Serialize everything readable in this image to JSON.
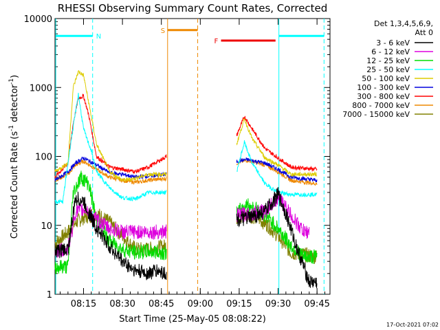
{
  "chart_data": {
    "type": "line",
    "title": "RHESSI Observing Summary Count Rates, Corrected",
    "xlabel": "Start Time (25-May-05 08:08:22)",
    "ylabel_main": "Corrected Count Rate (s",
    "ylabel_sup1": "-1",
    "ylabel_mid": " detector",
    "ylabel_sup2": "-1",
    "ylabel_end": ")",
    "yscale": "log",
    "ylim": [
      1,
      10000
    ],
    "xlim_minutes": [
      484,
      590
    ],
    "x_ticks": [
      {
        "m": 495,
        "label": "08:15"
      },
      {
        "m": 510,
        "label": "08:30"
      },
      {
        "m": 525,
        "label": "08:45"
      },
      {
        "m": 540,
        "label": "09:00"
      },
      {
        "m": 555,
        "label": "09:15"
      },
      {
        "m": 570,
        "label": "09:30"
      },
      {
        "m": 585,
        "label": "09:45"
      }
    ],
    "y_ticks": [
      {
        "v": 1,
        "label": "1"
      },
      {
        "v": 10,
        "label": "10"
      },
      {
        "v": 100,
        "label": "100"
      },
      {
        "v": 1000,
        "label": "1000"
      },
      {
        "v": 10000,
        "label": "10000"
      }
    ],
    "legend_title": [
      "Det 1,3,4,5,6,9,",
      "Att 0"
    ],
    "legend_position": "right",
    "footer_date": "17-Oct-2021 07:02",
    "series": [
      {
        "name": "3 - 6 keV",
        "color": "#000000",
        "gap1": [
          [
            484,
            4.2
          ],
          [
            489,
            4.5
          ],
          [
            492,
            25
          ],
          [
            495,
            22
          ],
          [
            500,
            9
          ],
          [
            505,
            5
          ],
          [
            510,
            3
          ],
          [
            515,
            2.2
          ],
          [
            520,
            2
          ],
          [
            523,
            2.2
          ],
          [
            527,
            2
          ]
        ],
        "gap2": [
          [
            554,
            12
          ],
          [
            560,
            13
          ],
          [
            565,
            16
          ],
          [
            570,
            28
          ],
          [
            573,
            15
          ],
          [
            577,
            5
          ],
          [
            582,
            1.5
          ],
          [
            585,
            1.5
          ]
        ]
      },
      {
        "name": "6 - 12 keV",
        "color": "#dd00dd",
        "gap1": [
          [
            484,
            4.2
          ],
          [
            489,
            4.5
          ],
          [
            492,
            16
          ],
          [
            496,
            17
          ],
          [
            500,
            12
          ],
          [
            505,
            9
          ],
          [
            510,
            8
          ],
          [
            515,
            8
          ],
          [
            520,
            8
          ],
          [
            527,
            8
          ]
        ],
        "gap2": [
          [
            554,
            14
          ],
          [
            560,
            15
          ],
          [
            565,
            16
          ],
          [
            570,
            26
          ],
          [
            573,
            18
          ],
          [
            577,
            11
          ],
          [
            580,
            8
          ],
          [
            582,
            8
          ]
        ]
      },
      {
        "name": "12 - 25 keV",
        "color": "#00dd00",
        "gap1": [
          [
            484,
            2.5
          ],
          [
            489,
            2.5
          ],
          [
            491,
            30
          ],
          [
            494,
            50
          ],
          [
            497,
            40
          ],
          [
            500,
            12
          ],
          [
            505,
            6
          ],
          [
            510,
            4.5
          ],
          [
            515,
            4
          ],
          [
            520,
            4.2
          ],
          [
            527,
            4
          ]
        ],
        "gap2": [
          [
            554,
            15
          ],
          [
            558,
            20
          ],
          [
            562,
            17
          ],
          [
            566,
            13
          ],
          [
            570,
            9
          ],
          [
            575,
            5
          ],
          [
            580,
            3.5
          ],
          [
            585,
            3.5
          ]
        ]
      },
      {
        "name": "25 - 50 keV",
        "color": "#00ffff",
        "gap1": [
          [
            484,
            22
          ],
          [
            487,
            22
          ],
          [
            490,
            150
          ],
          [
            493,
            800
          ],
          [
            495,
            250
          ],
          [
            498,
            120
          ],
          [
            500,
            60
          ],
          [
            505,
            35
          ],
          [
            510,
            25
          ],
          [
            515,
            24
          ],
          [
            520,
            30
          ],
          [
            527,
            30
          ]
        ],
        "gap2": [
          [
            554,
            60
          ],
          [
            557,
            160
          ],
          [
            560,
            80
          ],
          [
            565,
            40
          ],
          [
            570,
            30
          ],
          [
            575,
            28
          ],
          [
            585,
            28
          ]
        ]
      },
      {
        "name": "50 - 100 keV",
        "color": "#ddcc00",
        "gap1": [
          [
            484,
            60
          ],
          [
            489,
            80
          ],
          [
            491,
            1000
          ],
          [
            493,
            1700
          ],
          [
            495,
            1500
          ],
          [
            497,
            600
          ],
          [
            500,
            150
          ],
          [
            505,
            60
          ],
          [
            510,
            45
          ],
          [
            515,
            48
          ],
          [
            520,
            55
          ],
          [
            527,
            55
          ]
        ],
        "gap2": [
          [
            554,
            150
          ],
          [
            557,
            350
          ],
          [
            560,
            180
          ],
          [
            565,
            95
          ],
          [
            570,
            75
          ],
          [
            575,
            55
          ],
          [
            585,
            55
          ]
        ]
      },
      {
        "name": "100 - 300 keV",
        "color": "#0000dd",
        "gap1": [
          [
            484,
            45
          ],
          [
            489,
            60
          ],
          [
            492,
            80
          ],
          [
            495,
            95
          ],
          [
            500,
            75
          ],
          [
            505,
            58
          ],
          [
            510,
            55
          ],
          [
            515,
            50
          ],
          [
            520,
            52
          ],
          [
            527,
            55
          ]
        ],
        "gap2": [
          [
            554,
            85
          ],
          [
            558,
            90
          ],
          [
            565,
            80
          ],
          [
            570,
            65
          ],
          [
            575,
            50
          ],
          [
            585,
            45
          ]
        ]
      },
      {
        "name": "300 - 800 keV",
        "color": "#ff0000",
        "gap1": [
          [
            484,
            50
          ],
          [
            489,
            80
          ],
          [
            491,
            300
          ],
          [
            493,
            700
          ],
          [
            495,
            750
          ],
          [
            497,
            400
          ],
          [
            500,
            100
          ],
          [
            505,
            70
          ],
          [
            510,
            65
          ],
          [
            515,
            60
          ],
          [
            520,
            70
          ],
          [
            527,
            100
          ]
        ],
        "gap2": [
          [
            554,
            200
          ],
          [
            557,
            380
          ],
          [
            560,
            250
          ],
          [
            565,
            130
          ],
          [
            570,
            95
          ],
          [
            575,
            70
          ],
          [
            585,
            65
          ]
        ]
      },
      {
        "name": "800 - 7000 keV",
        "color": "#ee8800",
        "gap1": [
          [
            484,
            45
          ],
          [
            489,
            55
          ],
          [
            492,
            75
          ],
          [
            495,
            85
          ],
          [
            500,
            65
          ],
          [
            505,
            50
          ],
          [
            510,
            45
          ],
          [
            515,
            42
          ],
          [
            520,
            45
          ],
          [
            527,
            48
          ]
        ],
        "gap2": [
          [
            554,
            80
          ],
          [
            558,
            88
          ],
          [
            565,
            75
          ],
          [
            570,
            60
          ],
          [
            575,
            45
          ],
          [
            585,
            40
          ]
        ]
      },
      {
        "name": "7000 - 15000 keV",
        "color": "#808000",
        "gap1": [
          [
            484,
            5.5
          ],
          [
            489,
            8
          ],
          [
            492,
            11
          ],
          [
            495,
            13
          ],
          [
            500,
            15
          ],
          [
            505,
            11
          ],
          [
            510,
            7
          ],
          [
            515,
            4.5
          ],
          [
            520,
            4.5
          ],
          [
            527,
            5
          ]
        ],
        "gap2": [
          [
            554,
            13
          ],
          [
            558,
            14
          ],
          [
            562,
            13
          ],
          [
            566,
            10
          ],
          [
            570,
            7
          ],
          [
            575,
            4
          ],
          [
            585,
            3.5
          ]
        ]
      }
    ],
    "state_markers": [
      {
        "type": "solid",
        "m": 527.4,
        "color": "#ee8800"
      },
      {
        "type": "dashed",
        "m": 539,
        "color": "#ee8800"
      },
      {
        "type": "solid",
        "m": 484.3,
        "color": "#00ffff"
      },
      {
        "type": "dashed",
        "m": 498.5,
        "color": "#00ffff"
      },
      {
        "type": "solid",
        "m": 570.3,
        "color": "#00ffff"
      },
      {
        "type": "dashed",
        "m": 587.7,
        "color": "#00ffff"
      }
    ],
    "state_bars": [
      {
        "label": "N",
        "color": "#00ffff",
        "m0": 484.3,
        "m1": 498.5,
        "v": 5600
      },
      {
        "label": "",
        "color": "#00ffff",
        "m0": 570.3,
        "m1": 587.7,
        "v": 5600
      },
      {
        "label": "S",
        "color": "#ee8800",
        "m0": 527.4,
        "m1": 539,
        "v": 6800
      },
      {
        "label": "F",
        "color": "#ee0000",
        "m0": 548,
        "m1": 569,
        "v": 4800
      }
    ],
    "grid": false
  }
}
